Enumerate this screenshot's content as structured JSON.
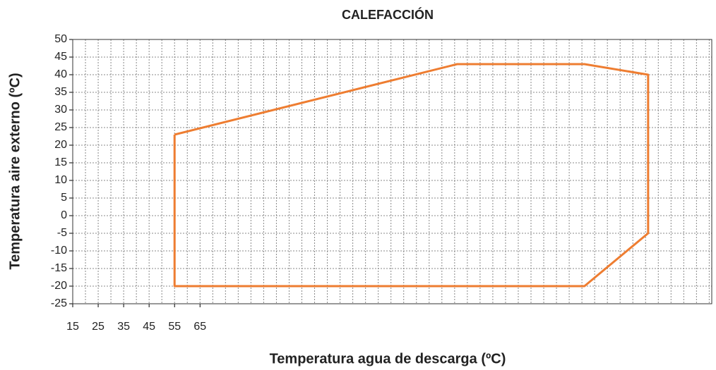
{
  "chart_data": {
    "type": "line",
    "title": "CALEFACCIÓN",
    "x_label": "Temperatura agua de descarga (ºC)",
    "y_label": "Temperatura aire externo (ºC)",
    "x": [
      55,
      166,
      216,
      241,
      241,
      216,
      55,
      55
    ],
    "values": [
      23,
      43,
      43,
      40,
      -5,
      -20,
      -20,
      23
    ],
    "color": "#ee7d31",
    "xlim": [
      15,
      266
    ],
    "xticks": [
      15,
      25,
      35,
      45,
      55,
      65
    ],
    "ylim": [
      -25,
      50
    ],
    "yticks": [
      -25,
      -20,
      -15,
      -10,
      -5,
      0,
      5,
      10,
      15,
      20,
      25,
      30,
      35,
      40,
      45,
      50
    ],
    "grid": true
  }
}
